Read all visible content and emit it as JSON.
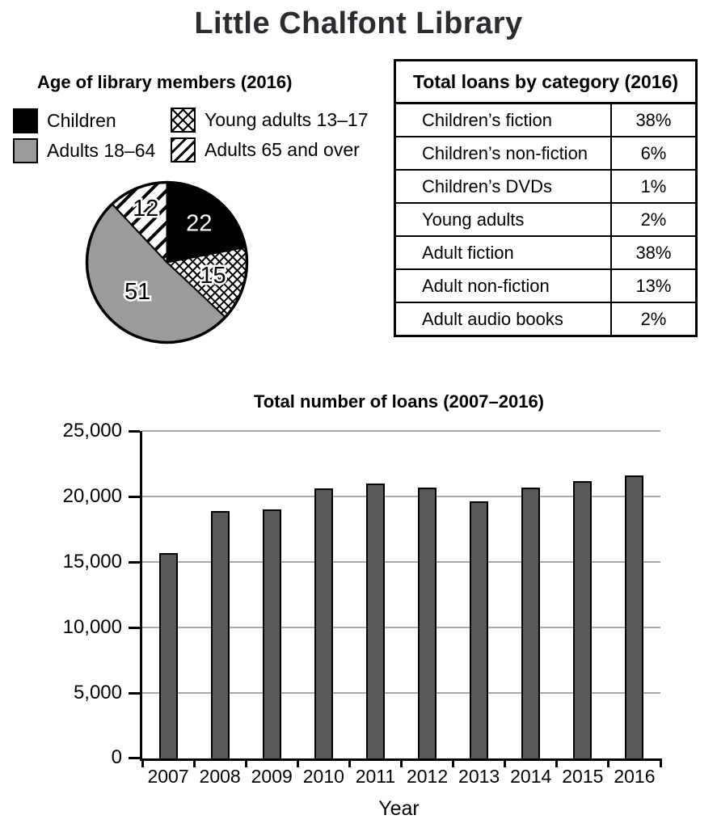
{
  "page_title": "Little Chalfont Library",
  "pie_section": {
    "title": "Age of library members (2016)",
    "legend": [
      {
        "label": "Children",
        "pattern": "solid-black"
      },
      {
        "label": "Adults 18–64",
        "pattern": "solid-gray"
      },
      {
        "label": "Young adults 13–17",
        "pattern": "crosshatch"
      },
      {
        "label": "Adults 65 and over",
        "pattern": "diagonal"
      }
    ]
  },
  "table_section": {
    "title": "Total loans by category (2016)",
    "rows": [
      {
        "label": "Children’s fiction",
        "value": "38%"
      },
      {
        "label": "Children’s non-fiction",
        "value": "6%"
      },
      {
        "label": "Children’s DVDs",
        "value": "1%"
      },
      {
        "label": "Young adults",
        "value": "2%"
      },
      {
        "label": "Adult fiction",
        "value": "38%"
      },
      {
        "label": "Adult non-fiction",
        "value": "13%"
      },
      {
        "label": "Adult audio books",
        "value": "2%"
      }
    ]
  },
  "bar_section": {
    "title": "Total number of loans (2007–2016)",
    "xlabel": "Year"
  },
  "chart_data": [
    {
      "type": "pie",
      "title": "Age of library members (2016)",
      "unit": "percent of members",
      "slices": [
        {
          "label": "Children",
          "value": 22,
          "pattern": "solid-black"
        },
        {
          "label": "Young adults 13–17",
          "value": 15,
          "pattern": "crosshatch"
        },
        {
          "label": "Adults 18–64",
          "value": 51,
          "pattern": "solid-gray"
        },
        {
          "label": "Adults 65 and over",
          "value": 12,
          "pattern": "diagonal"
        }
      ],
      "start_angle_deg": 0,
      "direction": "clockwise-from-top",
      "colors": {
        "black": "#000000",
        "gray": "#9b9b9b"
      }
    },
    {
      "type": "bar",
      "title": "Total number of loans (2007–2016)",
      "xlabel": "Year",
      "ylabel": "",
      "categories": [
        "2007",
        "2008",
        "2009",
        "2010",
        "2011",
        "2012",
        "2013",
        "2014",
        "2015",
        "2016"
      ],
      "values": [
        15700,
        18900,
        19000,
        20600,
        21000,
        20700,
        19600,
        20700,
        21200,
        21600
      ],
      "ylim": [
        0,
        25000
      ],
      "ytick_step": 5000,
      "ytick_labels": [
        "25,000",
        "20,000",
        "15,000",
        "10,000",
        "5,000",
        "0"
      ],
      "bar_color": "#58595b",
      "gridline_color": "#a9a9a9",
      "grid": true,
      "legend_position": "none"
    }
  ]
}
